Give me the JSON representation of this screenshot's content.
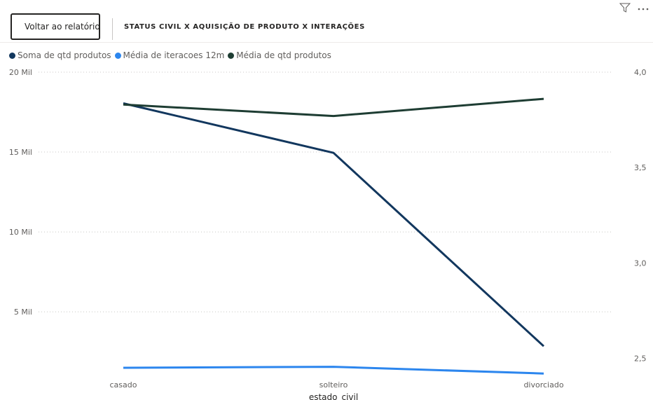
{
  "header": {
    "back_label": "Voltar ao relatório",
    "title": "STATUS CIVIL X AQUISIÇÃO DE PRODUTO X INTERAÇÕES",
    "filter_icon": "filter-icon",
    "more_icon": "more-options-icon"
  },
  "chart_data": {
    "type": "line",
    "categories": [
      "casado",
      "solteiro",
      "divorciado"
    ],
    "xlabel": "estado_civil",
    "y_left": {
      "ticks": [
        "5 Mil",
        "10 Mil",
        "15 Mil",
        "20 Mil"
      ],
      "tick_values": [
        5000,
        10000,
        15000,
        20000
      ],
      "lim": [
        1500,
        20000
      ]
    },
    "y_right": {
      "ticks": [
        "2,5",
        "3,0",
        "3,5",
        "4,0"
      ],
      "tick_values": [
        2.5,
        3.0,
        3.5,
        4.0
      ],
      "lim": [
        2.45,
        4.0
      ]
    },
    "grid": true,
    "legend_position": "top-left",
    "series": [
      {
        "name": "Soma de qtd produtos",
        "axis": "left",
        "color": "#12375e",
        "values": [
          18050,
          14950,
          2850
        ]
      },
      {
        "name": "Média de iteracoes 12m",
        "axis": "right",
        "color": "#2c86ee",
        "values": [
          2.45,
          2.455,
          2.42
        ]
      },
      {
        "name": "Média de qtd produtos",
        "axis": "right",
        "color": "#1e3d33",
        "values": [
          3.83,
          3.77,
          3.86
        ]
      }
    ]
  }
}
